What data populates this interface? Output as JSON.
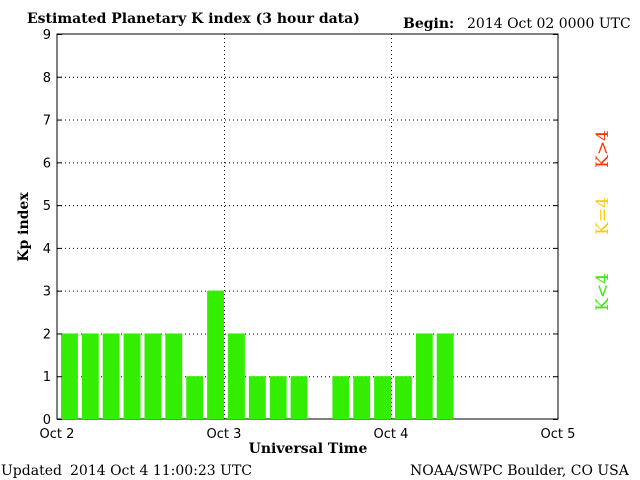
{
  "header": {
    "title": "Estimated Planetary K index (3 hour data)",
    "begin_label": "Begin:",
    "begin_value": "2014 Oct 02 0000 UTC"
  },
  "footer": {
    "updated_label": "Updated",
    "updated_value": "2014 Oct  4 11:00:23 UTC",
    "credit": "NOAA/SWPC Boulder, CO USA"
  },
  "legend": {
    "items": [
      {
        "text": "K>4",
        "color": "#ff3300"
      },
      {
        "text": "K=4",
        "color": "#ffcc00"
      },
      {
        "text": "K<4",
        "color": "#33ee00"
      }
    ]
  },
  "chart_data": {
    "type": "bar",
    "xlabel": "Universal Time",
    "ylabel": "Kp index",
    "ylim": [
      0,
      9
    ],
    "xlim": [
      "Oct 2",
      "Oct 5"
    ],
    "x_ticks": [
      "Oct 2",
      "Oct 3",
      "Oct 4",
      "Oct 5"
    ],
    "y_ticks": [
      0,
      1,
      2,
      3,
      4,
      5,
      6,
      7,
      8,
      9
    ],
    "interval_hours": 3,
    "grid": "dotted, at y=4 and at day boundaries",
    "bar_color": "#33ee00",
    "values": [
      2,
      2,
      2,
      2,
      2,
      2,
      1,
      3,
      2,
      1,
      1,
      1,
      null,
      1,
      1,
      1,
      1,
      2,
      2
    ]
  }
}
